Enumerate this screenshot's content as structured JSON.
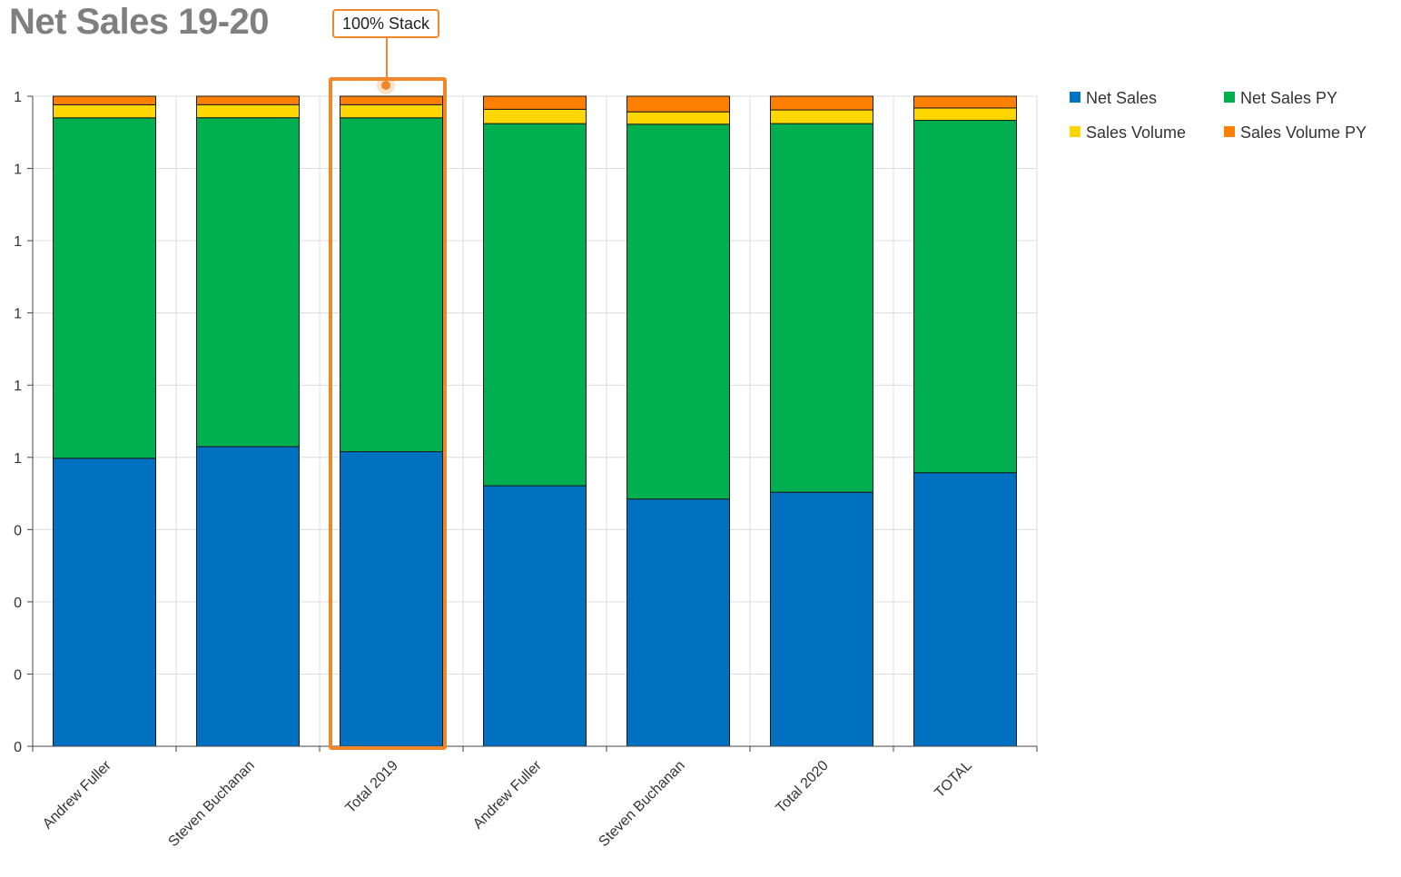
{
  "title": "Net Sales 19-20",
  "callout": {
    "label": "100% Stack"
  },
  "colors": {
    "net_sales": "#0070c0",
    "net_sales_py": "#00b050",
    "sales_volume": "#ffd700",
    "sales_volume_py": "#ff8000",
    "highlight": "#f0882a"
  },
  "chart_data": {
    "type": "bar",
    "stacked": "percent",
    "title": "Net Sales 19-20",
    "categories": [
      "Andrew Fuller",
      "Steven Buchanan",
      "Total 2019",
      "Andrew Fuller",
      "Steven Buchanan",
      "Total 2020",
      "TOTAL"
    ],
    "series": [
      {
        "name": "Net Sales",
        "color": "#0070c0",
        "values": [
          0.44,
          0.46,
          0.45,
          0.4,
          0.38,
          0.39,
          0.42
        ]
      },
      {
        "name": "Net Sales PY",
        "color": "#00b050",
        "values": [
          0.52,
          0.505,
          0.51,
          0.556,
          0.576,
          0.566,
          0.541
        ]
      },
      {
        "name": "Sales Volume",
        "color": "#ffd700",
        "values": [
          0.02,
          0.02,
          0.02,
          0.022,
          0.019,
          0.021,
          0.019
        ]
      },
      {
        "name": "Sales Volume PY",
        "color": "#ff8000",
        "values": [
          0.013,
          0.013,
          0.013,
          0.02,
          0.024,
          0.021,
          0.018
        ]
      }
    ],
    "y_tick_labels": [
      "0",
      "0",
      "0",
      "0",
      "1",
      "1",
      "1",
      "1",
      "1",
      "1"
    ],
    "ylim": [
      0,
      1
    ],
    "grid": true,
    "legend": "top-right",
    "highlighted_category_index": 2
  }
}
